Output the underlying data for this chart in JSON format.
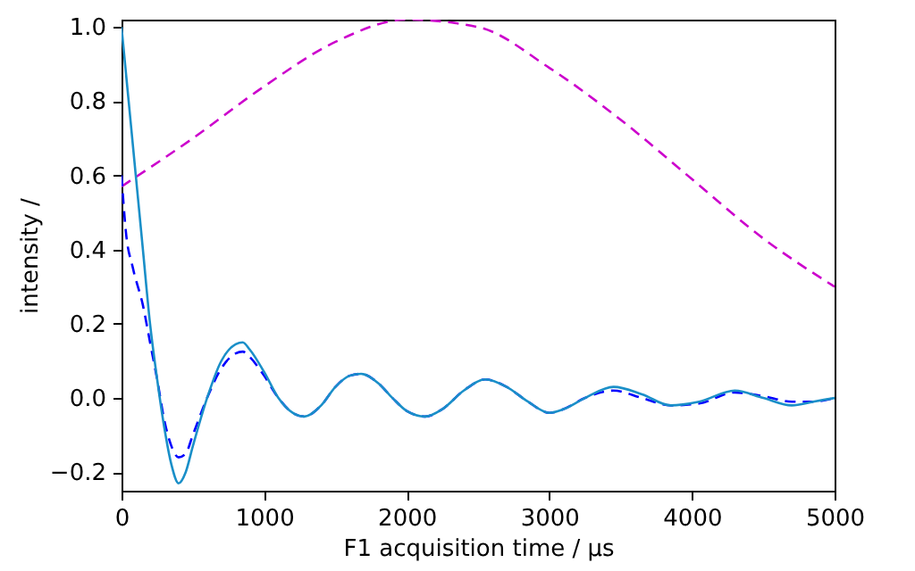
{
  "chart_data": {
    "type": "line",
    "xlabel": "F1 acquisition time / µs",
    "ylabel": "intensity /",
    "xlim": [
      0,
      5000
    ],
    "ylim": [
      -0.25,
      1.02
    ],
    "xticks": [
      0,
      1000,
      2000,
      3000,
      4000,
      5000
    ],
    "yticks": [
      {
        "value": -0.2,
        "label": "−0.2"
      },
      {
        "value": 0,
        "label": "0.0"
      },
      {
        "value": 0.2,
        "label": "0.2"
      },
      {
        "value": 0.4,
        "label": "0.4"
      },
      {
        "value": 0.6,
        "label": "0.6"
      },
      {
        "value": 0.8,
        "label": "0.8"
      },
      {
        "value": 1,
        "label": "1.0"
      }
    ],
    "grid": false,
    "marker": "none",
    "series": [
      {
        "color": "#cc00cc",
        "line_style": "dashed",
        "x": [
          0,
          500,
          1000,
          1500,
          2000,
          2500,
          3000,
          3500,
          4000,
          4500,
          5000
        ],
        "values": [
          0.57,
          0.7,
          0.84,
          0.96,
          1.02,
          1.0,
          0.89,
          0.75,
          0.59,
          0.43,
          0.3
        ]
      },
      {
        "color": "#0000ff",
        "line_style": "dashed",
        "x": [
          0,
          30,
          80,
          150,
          200,
          250,
          300,
          350,
          400,
          450,
          500,
          600,
          700,
          800,
          850,
          900,
          1000,
          1100,
          1200,
          1280,
          1400,
          1500,
          1600,
          1680,
          1800,
          1900,
          2000,
          2130,
          2250,
          2400,
          2550,
          2700,
          2850,
          3000,
          3100,
          3250,
          3450,
          3650,
          3850,
          4050,
          4300,
          4500,
          4700,
          4850,
          5000
        ],
        "values": [
          0.6,
          0.45,
          0.35,
          0.25,
          0.15,
          0.05,
          -0.06,
          -0.13,
          -0.16,
          -0.15,
          -0.1,
          0.0,
          0.08,
          0.12,
          0.125,
          0.11,
          0.06,
          0.0,
          -0.04,
          -0.05,
          -0.02,
          0.03,
          0.06,
          0.065,
          0.04,
          0.0,
          -0.035,
          -0.05,
          -0.03,
          0.02,
          0.05,
          0.03,
          -0.01,
          -0.04,
          -0.03,
          0.0,
          0.02,
          0.0,
          -0.02,
          -0.015,
          0.015,
          0.005,
          -0.01,
          -0.01,
          0.0
        ]
      },
      {
        "color": "#1a8fc8",
        "line_style": "solid",
        "x": [
          0,
          50,
          100,
          150,
          200,
          250,
          300,
          350,
          400,
          450,
          500,
          600,
          700,
          800,
          850,
          900,
          1000,
          1100,
          1200,
          1280,
          1400,
          1500,
          1600,
          1680,
          1800,
          1900,
          2000,
          2130,
          2250,
          2400,
          2550,
          2700,
          2850,
          3000,
          3100,
          3250,
          3450,
          3650,
          3850,
          4050,
          4300,
          4500,
          4700,
          4850,
          5000
        ],
        "values": [
          1.0,
          0.8,
          0.6,
          0.4,
          0.2,
          0.05,
          -0.08,
          -0.18,
          -0.23,
          -0.2,
          -0.13,
          0.0,
          0.1,
          0.145,
          0.15,
          0.13,
          0.07,
          0.0,
          -0.04,
          -0.05,
          -0.02,
          0.03,
          0.06,
          0.065,
          0.04,
          0.0,
          -0.035,
          -0.05,
          -0.03,
          0.02,
          0.05,
          0.03,
          -0.01,
          -0.04,
          -0.03,
          0.0,
          0.03,
          0.01,
          -0.02,
          -0.01,
          0.02,
          0.0,
          -0.02,
          -0.01,
          0.0
        ]
      }
    ]
  }
}
